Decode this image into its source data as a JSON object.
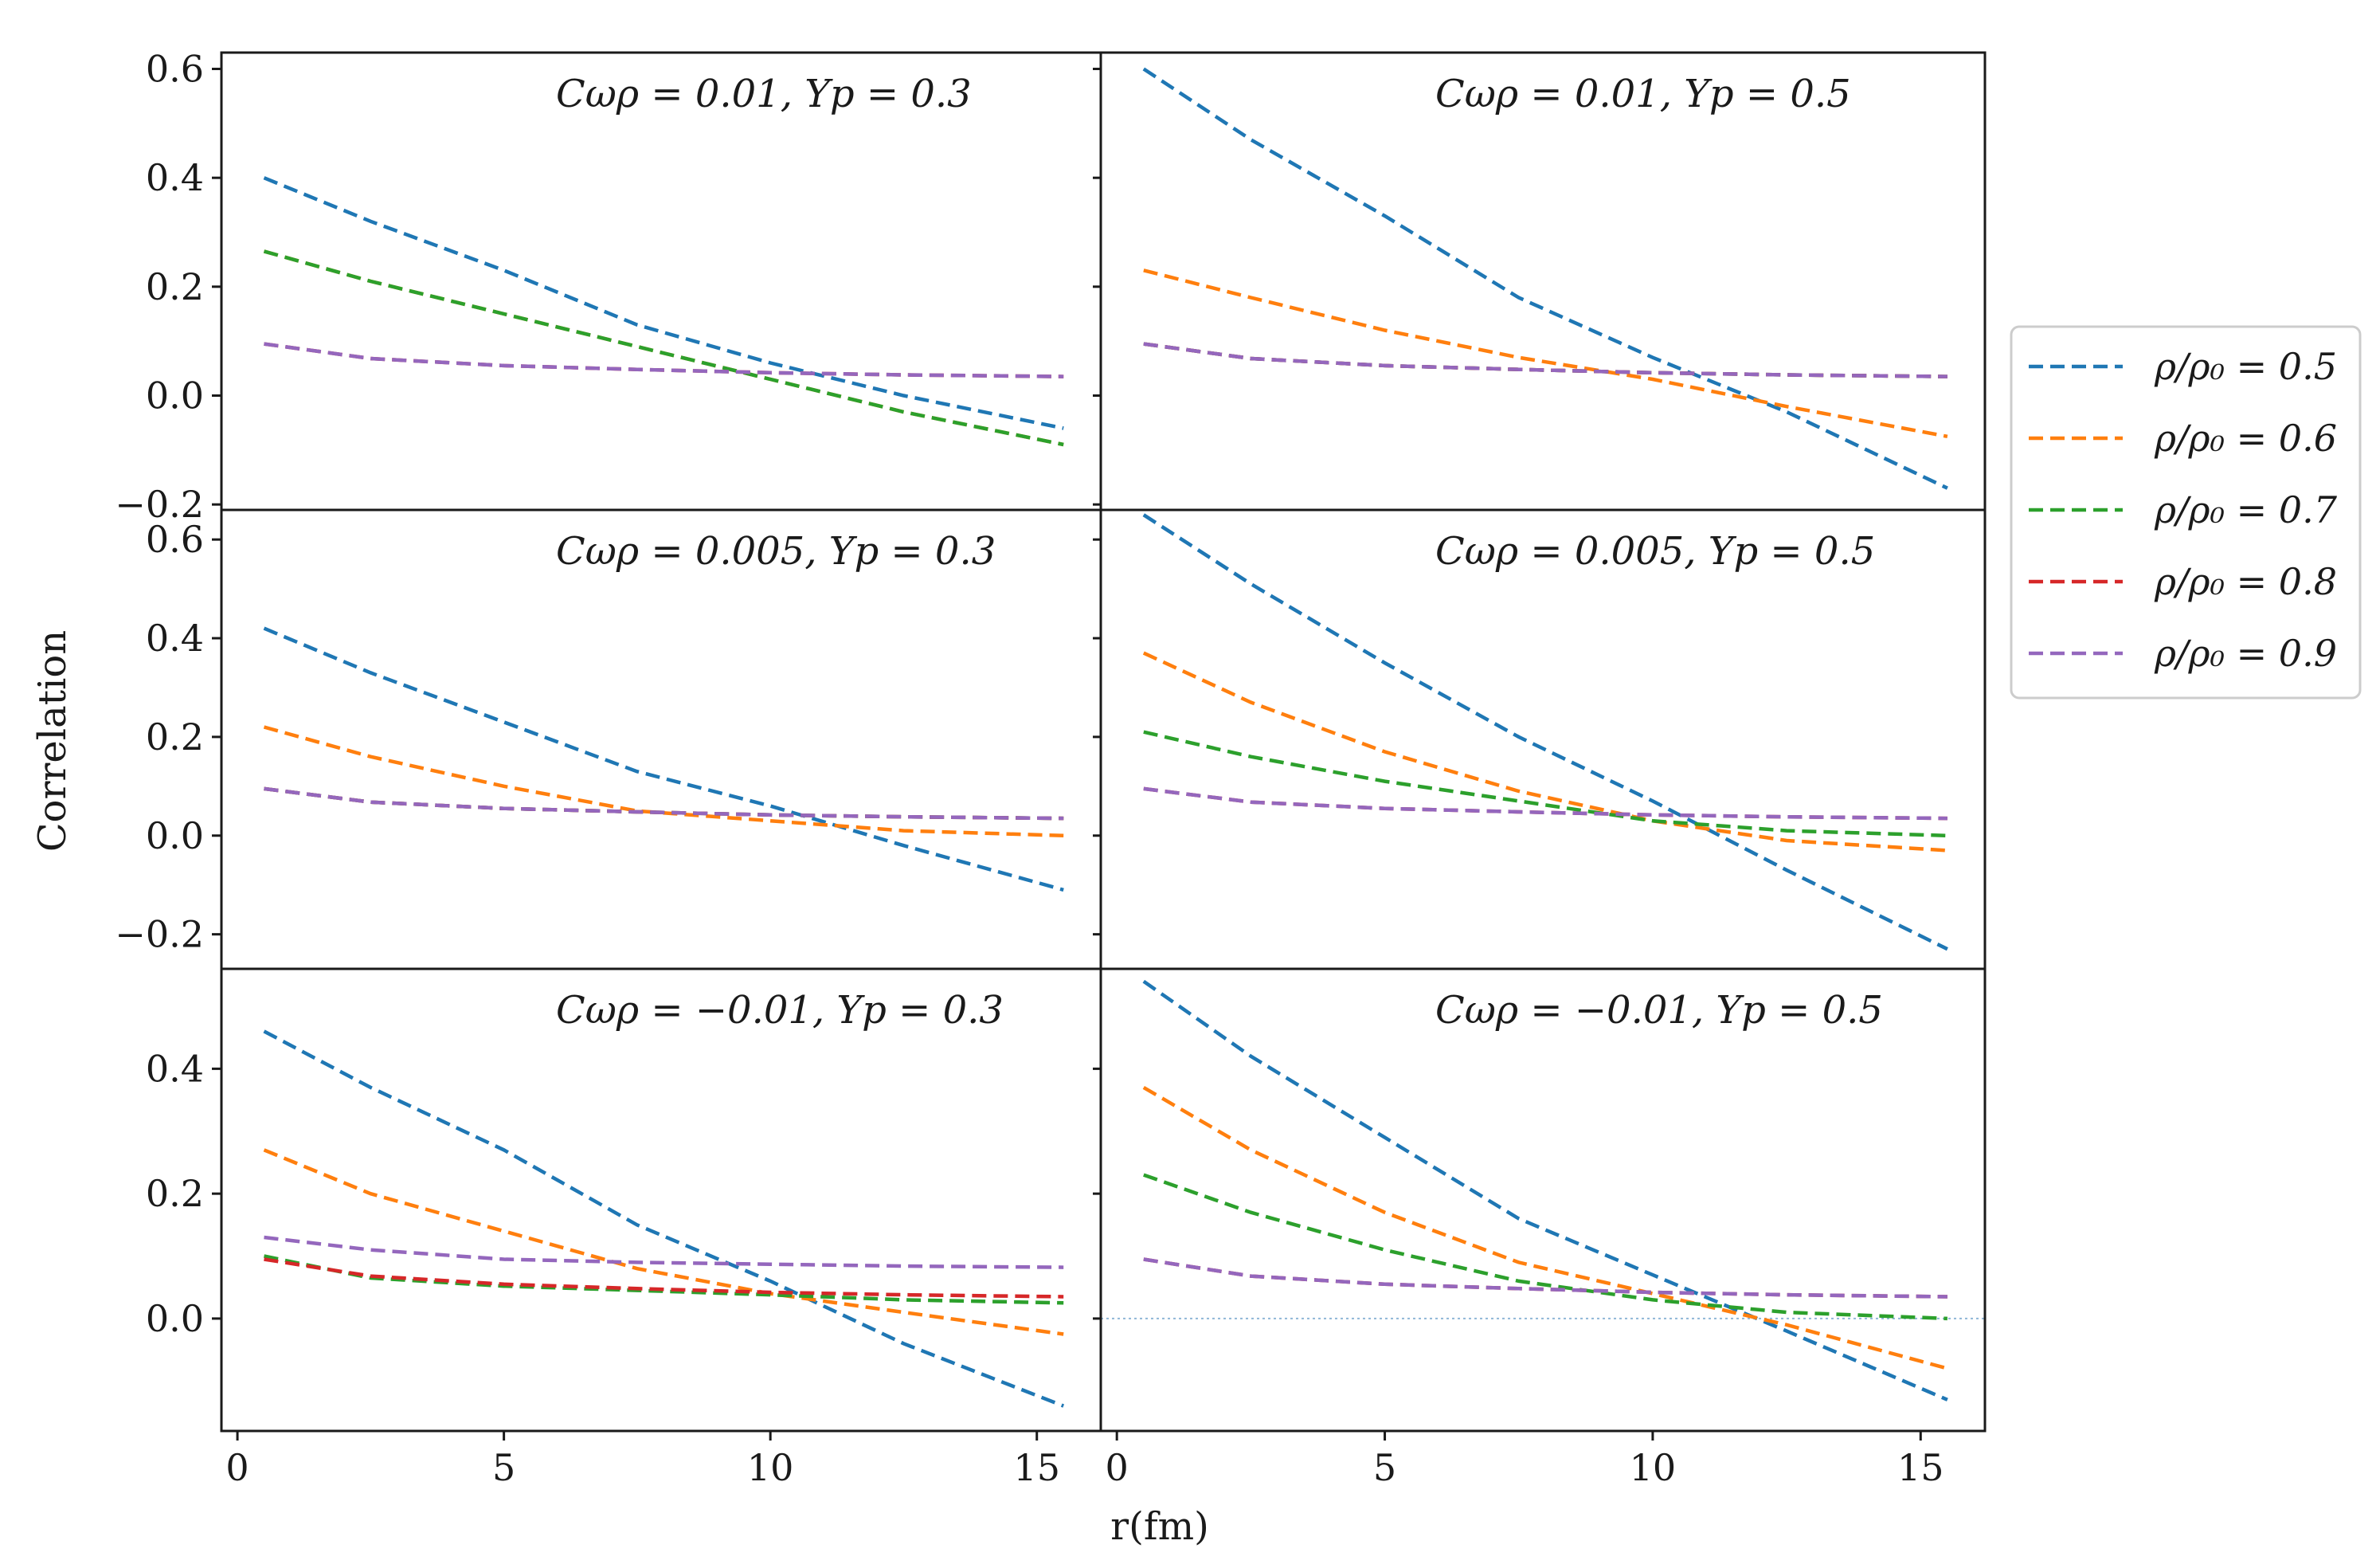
{
  "colors": {
    "0.5": "#1f77b4",
    "0.6": "#ff7f0e",
    "0.7": "#2ca02c",
    "0.8": "#d62728",
    "0.9": "#9467bd"
  },
  "chart_data": {
    "type": "line",
    "xlabel": "r(fm)",
    "ylabel": "Correlation",
    "x_ticks": [
      "0",
      "5",
      "10",
      "15"
    ],
    "xlim": [
      -0.3,
      16.2
    ],
    "legend": {
      "placement": "right",
      "entries": [
        {
          "key": "0.5",
          "label": "ρ/ρ₀ = 0.5"
        },
        {
          "key": "0.6",
          "label": "ρ/ρ₀ = 0.6"
        },
        {
          "key": "0.7",
          "label": "ρ/ρ₀ = 0.7"
        },
        {
          "key": "0.8",
          "label": "ρ/ρ₀ = 0.8"
        },
        {
          "key": "0.9",
          "label": "ρ/ρ₀ = 0.9"
        }
      ]
    },
    "rows": [
      {
        "ylim": [
          -0.21,
          0.63
        ],
        "y_ticks": [
          "−0.2",
          "0.0",
          "0.2",
          "0.4",
          "0.6"
        ],
        "y_tick_values": [
          -0.2,
          0.0,
          0.2,
          0.4,
          0.6
        ]
      },
      {
        "ylim": [
          -0.27,
          0.66
        ],
        "y_ticks": [
          "−0.2",
          "0.0",
          "0.2",
          "0.4",
          "0.6"
        ],
        "y_tick_values": [
          -0.2,
          0.0,
          0.2,
          0.4,
          0.6
        ]
      },
      {
        "ylim": [
          -0.18,
          0.56
        ],
        "y_ticks": [
          "0.0",
          "0.2",
          "0.4"
        ],
        "y_tick_values": [
          0.0,
          0.2,
          0.4
        ]
      }
    ],
    "panels": [
      {
        "row": 0,
        "col": 0,
        "title": "Cωρ = 0.01, Yp = 0.3",
        "series": [
          {
            "name": "ρ/ρ₀ = 0.5",
            "key": "0.5",
            "x": [
              0.5,
              2.5,
              5,
              7.5,
              10,
              12.5,
              15.5
            ],
            "y": [
              0.4,
              0.32,
              0.23,
              0.13,
              0.06,
              0.0,
              -0.06
            ]
          },
          {
            "name": "ρ/ρ₀ = 0.6",
            "key": "0.6",
            "x": [
              0.5,
              2.5,
              5,
              7.5,
              10,
              12.5,
              15.5
            ],
            "y": [
              0.265,
              0.21,
              0.15,
              0.09,
              0.03,
              -0.03,
              -0.09
            ]
          },
          {
            "name": "ρ/ρ₀ = 0.7",
            "key": "0.7",
            "x": [
              0.5,
              2.5,
              5,
              7.5,
              10,
              12.5,
              15.5
            ],
            "y": [
              0.265,
              0.21,
              0.15,
              0.09,
              0.03,
              -0.03,
              -0.09
            ]
          },
          {
            "name": "ρ/ρ₀ = 0.8",
            "key": "0.8",
            "x": [
              0.5,
              2.5,
              5,
              7.5,
              10,
              12.5,
              15.5
            ],
            "y": [
              0.095,
              0.068,
              0.055,
              0.048,
              0.042,
              0.038,
              0.035
            ]
          },
          {
            "name": "ρ/ρ₀ = 0.9",
            "key": "0.9",
            "x": [
              0.5,
              2.5,
              5,
              7.5,
              10,
              12.5,
              15.5
            ],
            "y": [
              0.095,
              0.068,
              0.055,
              0.048,
              0.042,
              0.038,
              0.035
            ]
          }
        ]
      },
      {
        "row": 0,
        "col": 1,
        "title": "Cωρ = 0.01, Yp = 0.5",
        "series": [
          {
            "name": "ρ/ρ₀ = 0.5",
            "key": "0.5",
            "x": [
              0.5,
              2.5,
              5,
              7.5,
              10,
              12.5,
              15.5
            ],
            "y": [
              0.6,
              0.47,
              0.33,
              0.18,
              0.07,
              -0.03,
              -0.17
            ]
          },
          {
            "name": "ρ/ρ₀ = 0.6",
            "key": "0.6",
            "x": [
              0.5,
              2.5,
              5,
              7.5,
              10,
              12.5,
              15.5
            ],
            "y": [
              0.23,
              0.18,
              0.12,
              0.07,
              0.03,
              -0.02,
              -0.075
            ]
          },
          {
            "name": "ρ/ρ₀ = 0.7",
            "key": "0.7",
            "x": [
              0.5,
              2.5,
              5,
              7.5,
              10,
              12.5,
              15.5
            ],
            "y": [
              0.095,
              0.068,
              0.055,
              0.048,
              0.042,
              0.038,
              0.035
            ]
          },
          {
            "name": "ρ/ρ₀ = 0.8",
            "key": "0.8",
            "x": [
              0.5,
              2.5,
              5,
              7.5,
              10,
              12.5,
              15.5
            ],
            "y": [
              0.095,
              0.068,
              0.055,
              0.048,
              0.042,
              0.038,
              0.035
            ]
          },
          {
            "name": "ρ/ρ₀ = 0.9",
            "key": "0.9",
            "x": [
              0.5,
              2.5,
              5,
              7.5,
              10,
              12.5,
              15.5
            ],
            "y": [
              0.095,
              0.068,
              0.055,
              0.048,
              0.042,
              0.038,
              0.035
            ]
          }
        ]
      },
      {
        "row": 1,
        "col": 0,
        "title": "Cωρ = 0.005, Yp = 0.3",
        "series": [
          {
            "name": "ρ/ρ₀ = 0.5",
            "key": "0.5",
            "x": [
              0.5,
              2.5,
              5,
              7.5,
              10,
              12.5,
              15.5
            ],
            "y": [
              0.42,
              0.33,
              0.23,
              0.13,
              0.06,
              -0.02,
              -0.11
            ]
          },
          {
            "name": "ρ/ρ₀ = 0.6",
            "key": "0.6",
            "x": [
              0.5,
              2.5,
              5,
              7.5,
              10,
              12.5,
              15.5
            ],
            "y": [
              0.22,
              0.16,
              0.1,
              0.05,
              0.03,
              0.01,
              0.0
            ]
          },
          {
            "name": "ρ/ρ₀ = 0.7",
            "key": "0.7",
            "x": [
              0.5,
              2.5,
              5,
              7.5,
              10,
              12.5,
              15.5
            ],
            "y": [
              0.095,
              0.068,
              0.055,
              0.048,
              0.042,
              0.038,
              0.035
            ]
          },
          {
            "name": "ρ/ρ₀ = 0.8",
            "key": "0.8",
            "x": [
              0.5,
              2.5,
              5,
              7.5,
              10,
              12.5,
              15.5
            ],
            "y": [
              0.095,
              0.068,
              0.055,
              0.048,
              0.042,
              0.038,
              0.035
            ]
          },
          {
            "name": "ρ/ρ₀ = 0.9",
            "key": "0.9",
            "x": [
              0.5,
              2.5,
              5,
              7.5,
              10,
              12.5,
              15.5
            ],
            "y": [
              0.095,
              0.068,
              0.055,
              0.048,
              0.042,
              0.038,
              0.035
            ]
          }
        ]
      },
      {
        "row": 1,
        "col": 1,
        "title": "Cωρ = 0.005, Yp = 0.5",
        "series": [
          {
            "name": "ρ/ρ₀ = 0.5",
            "key": "0.5",
            "x": [
              0.5,
              2.5,
              5,
              7.5,
              10,
              12.5,
              15.5
            ],
            "y": [
              0.65,
              0.51,
              0.35,
              0.2,
              0.07,
              -0.07,
              -0.23
            ]
          },
          {
            "name": "ρ/ρ₀ = 0.6",
            "key": "0.6",
            "x": [
              0.5,
              2.5,
              5,
              7.5,
              10,
              12.5,
              15.5
            ],
            "y": [
              0.37,
              0.27,
              0.17,
              0.09,
              0.03,
              -0.01,
              -0.03
            ]
          },
          {
            "name": "ρ/ρ₀ = 0.7",
            "key": "0.7",
            "x": [
              0.5,
              2.5,
              5,
              7.5,
              10,
              12.5,
              15.5
            ],
            "y": [
              0.21,
              0.16,
              0.11,
              0.07,
              0.03,
              0.01,
              0.0
            ]
          },
          {
            "name": "ρ/ρ₀ = 0.8",
            "key": "0.8",
            "x": [
              0.5,
              2.5,
              5,
              7.5,
              10,
              12.5,
              15.5
            ],
            "y": [
              0.095,
              0.068,
              0.055,
              0.048,
              0.042,
              0.038,
              0.035
            ]
          },
          {
            "name": "ρ/ρ₀ = 0.9",
            "key": "0.9",
            "x": [
              0.5,
              2.5,
              5,
              7.5,
              10,
              12.5,
              15.5
            ],
            "y": [
              0.095,
              0.068,
              0.055,
              0.048,
              0.042,
              0.038,
              0.035
            ]
          }
        ]
      },
      {
        "row": 2,
        "col": 0,
        "title": "Cωρ = −0.01, Yp = 0.3",
        "series": [
          {
            "name": "ρ/ρ₀ = 0.5",
            "key": "0.5",
            "x": [
              0.5,
              2.5,
              5,
              7.5,
              10,
              12.5,
              15.5
            ],
            "y": [
              0.46,
              0.37,
              0.27,
              0.15,
              0.06,
              -0.04,
              -0.14
            ]
          },
          {
            "name": "ρ/ρ₀ = 0.6",
            "key": "0.6",
            "x": [
              0.5,
              2.5,
              5,
              7.5,
              10,
              12.5,
              15.5
            ],
            "y": [
              0.27,
              0.2,
              0.14,
              0.08,
              0.04,
              0.01,
              -0.025
            ]
          },
          {
            "name": "ρ/ρ₀ = 0.7",
            "key": "0.7",
            "x": [
              0.5,
              2.5,
              5,
              7.5,
              10,
              12.5,
              15.5
            ],
            "y": [
              0.1,
              0.065,
              0.052,
              0.045,
              0.038,
              0.03,
              0.025
            ]
          },
          {
            "name": "ρ/ρ₀ = 0.8",
            "key": "0.8",
            "x": [
              0.5,
              2.5,
              5,
              7.5,
              10,
              12.5,
              15.5
            ],
            "y": [
              0.095,
              0.068,
              0.055,
              0.048,
              0.042,
              0.038,
              0.035
            ]
          },
          {
            "name": "ρ/ρ₀ = 0.9",
            "key": "0.9",
            "x": [
              0.5,
              2.5,
              5,
              7.5,
              10,
              12.5,
              15.5
            ],
            "y": [
              0.13,
              0.11,
              0.095,
              0.09,
              0.087,
              0.084,
              0.082
            ]
          }
        ]
      },
      {
        "row": 2,
        "col": 1,
        "title": "Cωρ = −0.01, Yp = 0.5",
        "zero_line": true,
        "series": [
          {
            "name": "ρ/ρ₀ = 0.5",
            "key": "0.5",
            "x": [
              0.5,
              2.5,
              5,
              7.5,
              10,
              12.5,
              15.5
            ],
            "y": [
              0.54,
              0.42,
              0.29,
              0.16,
              0.07,
              -0.02,
              -0.13
            ]
          },
          {
            "name": "ρ/ρ₀ = 0.6",
            "key": "0.6",
            "x": [
              0.5,
              2.5,
              5,
              7.5,
              10,
              12.5,
              15.5
            ],
            "y": [
              0.37,
              0.27,
              0.17,
              0.09,
              0.04,
              -0.01,
              -0.08
            ]
          },
          {
            "name": "ρ/ρ₀ = 0.7",
            "key": "0.7",
            "x": [
              0.5,
              2.5,
              5,
              7.5,
              10,
              12.5,
              15.5
            ],
            "y": [
              0.23,
              0.17,
              0.11,
              0.06,
              0.03,
              0.01,
              0.0
            ]
          },
          {
            "name": "ρ/ρ₀ = 0.8",
            "key": "0.8",
            "x": [
              0.5,
              2.5,
              5,
              7.5,
              10,
              12.5,
              15.5
            ],
            "y": [
              0.095,
              0.068,
              0.055,
              0.048,
              0.042,
              0.038,
              0.035
            ]
          },
          {
            "name": "ρ/ρ₀ = 0.9",
            "key": "0.9",
            "x": [
              0.5,
              2.5,
              5,
              7.5,
              10,
              12.5,
              15.5
            ],
            "y": [
              0.095,
              0.068,
              0.055,
              0.048,
              0.042,
              0.038,
              0.035
            ]
          }
        ]
      }
    ]
  }
}
